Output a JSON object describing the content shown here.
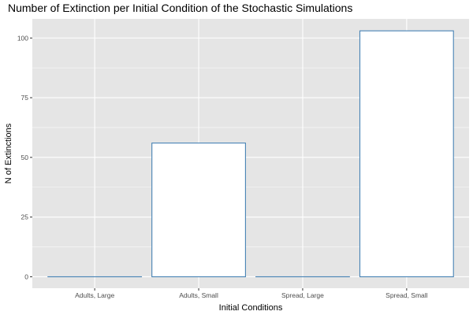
{
  "chart_data": {
    "type": "bar",
    "title": "Number of Extinction per Initial Condition of the Stochastic Simulations",
    "xlabel": "Initial Conditions",
    "ylabel": "N of Extinctions",
    "categories": [
      "Adults, Large",
      "Adults, Small",
      "Spread, Large",
      "Spread, Small"
    ],
    "values": [
      0,
      56,
      0,
      103
    ],
    "ylim": [
      -4.8,
      108
    ],
    "yticks": [
      0,
      25,
      50,
      75,
      100
    ],
    "grid": true,
    "legend": "none",
    "colors": {
      "panel_background": "#e5e5e5",
      "grid_major": "#ffffff",
      "bar_fill": "#ffffff",
      "bar_outline": "#4682b4"
    }
  }
}
